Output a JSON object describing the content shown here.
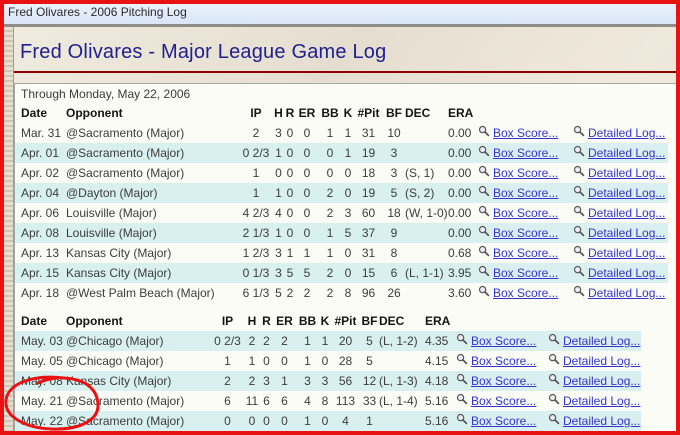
{
  "window": {
    "title": "Fred Olivares - 2006 Pitching Log"
  },
  "page": {
    "heading": "Fred Olivares - Major League Game Log",
    "through_line": "Through Monday, May 22, 2006"
  },
  "links": {
    "box_score": "Box Score...",
    "detailed_log": "Detailed Log..."
  },
  "columns": [
    "Date",
    "Opponent",
    "IP",
    "H",
    "R",
    "ER",
    "BB",
    "K",
    "#Pit",
    "BF",
    "DEC",
    "ERA"
  ],
  "tables": [
    {
      "name": "march-april-games",
      "rows": [
        {
          "date": "Mar. 31",
          "opp": "@Sacramento (Major)",
          "ip": "2",
          "h": "3",
          "r": "0",
          "er": "0",
          "bb": "1",
          "k": "1",
          "pit": "31",
          "bf": "10",
          "dec": "",
          "era": "0.00"
        },
        {
          "date": "Apr. 01",
          "opp": "@Sacramento (Major)",
          "ip": "0 2/3",
          "h": "1",
          "r": "0",
          "er": "0",
          "bb": "0",
          "k": "1",
          "pit": "19",
          "bf": "3",
          "dec": "",
          "era": "0.00"
        },
        {
          "date": "Apr. 02",
          "opp": "@Sacramento (Major)",
          "ip": "1",
          "h": "0",
          "r": "0",
          "er": "0",
          "bb": "0",
          "k": "0",
          "pit": "18",
          "bf": "3",
          "dec": "(S, 1)",
          "era": "0.00"
        },
        {
          "date": "Apr. 04",
          "opp": "@Dayton (Major)",
          "ip": "1",
          "h": "1",
          "r": "0",
          "er": "0",
          "bb": "2",
          "k": "0",
          "pit": "19",
          "bf": "5",
          "dec": "(S, 2)",
          "era": "0.00"
        },
        {
          "date": "Apr. 06",
          "opp": "Louisville (Major)",
          "ip": "4 2/3",
          "h": "4",
          "r": "0",
          "er": "0",
          "bb": "2",
          "k": "3",
          "pit": "60",
          "bf": "18",
          "dec": "(W, 1-0)",
          "era": "0.00"
        },
        {
          "date": "Apr. 08",
          "opp": "Louisville (Major)",
          "ip": "2 1/3",
          "h": "1",
          "r": "0",
          "er": "0",
          "bb": "1",
          "k": "5",
          "pit": "37",
          "bf": "9",
          "dec": "",
          "era": "0.00"
        },
        {
          "date": "Apr. 13",
          "opp": "Kansas City (Major)",
          "ip": "1 2/3",
          "h": "3",
          "r": "1",
          "er": "1",
          "bb": "1",
          "k": "0",
          "pit": "31",
          "bf": "8",
          "dec": "",
          "era": "0.68"
        },
        {
          "date": "Apr. 15",
          "opp": "Kansas City (Major)",
          "ip": "0 1/3",
          "h": "3",
          "r": "5",
          "er": "5",
          "bb": "2",
          "k": "0",
          "pit": "15",
          "bf": "6",
          "dec": "(L, 1-1)",
          "era": "3.95"
        },
        {
          "date": "Apr. 18",
          "opp": "@West Palm Beach (Major)",
          "ip": "6 1/3",
          "h": "5",
          "r": "2",
          "er": "2",
          "bb": "2",
          "k": "8",
          "pit": "96",
          "bf": "26",
          "dec": "",
          "era": "3.60"
        }
      ]
    },
    {
      "name": "may-games",
      "rows": [
        {
          "date": "May. 03",
          "opp": "@Chicago (Major)",
          "ip": "0 2/3",
          "h": "2",
          "r": "2",
          "er": "2",
          "bb": "1",
          "k": "1",
          "pit": "20",
          "bf": "5",
          "dec": "(L, 1-2)",
          "era": "4.35"
        },
        {
          "date": "May. 05",
          "opp": "@Chicago (Major)",
          "ip": "1",
          "h": "1",
          "r": "0",
          "er": "0",
          "bb": "1",
          "k": "0",
          "pit": "28",
          "bf": "5",
          "dec": "",
          "era": "4.15"
        },
        {
          "date": "May. 08",
          "opp": "Kansas City (Major)",
          "ip": "2",
          "h": "2",
          "r": "3",
          "er": "1",
          "bb": "3",
          "k": "3",
          "pit": "56",
          "bf": "12",
          "dec": "(L, 1-3)",
          "era": "4.18"
        },
        {
          "date": "May. 21",
          "opp": "@Sacramento (Major)",
          "ip": "6",
          "h": "11",
          "r": "6",
          "er": "6",
          "bb": "4",
          "k": "8",
          "pit": "113",
          "bf": "33",
          "dec": "(L, 1-4)",
          "era": "5.16"
        },
        {
          "date": "May. 22",
          "opp": "@Sacramento (Major)",
          "ip": "0",
          "h": "0",
          "r": "0",
          "er": "0",
          "bb": "1",
          "k": "0",
          "pit": "4",
          "bf": "1",
          "dec": "",
          "era": "5.16"
        }
      ]
    }
  ],
  "icons": {
    "link_prefix": "magnifier"
  },
  "annotation": {
    "shape": "hand-drawn red circle",
    "target": "May. 21 and May. 22 rows",
    "color": "#e81212"
  },
  "colors": {
    "heading": "#20208e",
    "rule": "#8e0000",
    "row_stripe": "#d9f0f0",
    "link": "#3434cf",
    "titlebar_bg": "#dde9f8",
    "annotation_red": "#e81212"
  }
}
